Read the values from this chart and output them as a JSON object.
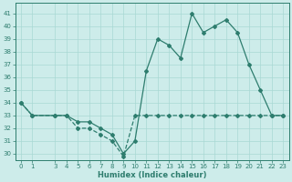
{
  "line1_x": [
    0,
    1,
    3,
    4,
    5,
    6,
    7,
    8,
    9,
    10,
    11,
    12,
    13,
    14,
    15,
    16,
    17,
    18,
    19,
    20,
    21,
    22,
    23
  ],
  "line1_y": [
    34,
    33,
    33,
    33,
    32.5,
    32.5,
    32,
    31.5,
    30,
    31,
    36.5,
    39,
    38.5,
    37.5,
    41,
    39.5,
    40,
    40.5,
    39.5,
    37,
    35,
    33,
    33
  ],
  "line2_x": [
    0,
    1,
    3,
    4,
    5,
    6,
    7,
    8,
    9,
    10,
    11,
    12,
    13,
    14,
    15,
    16,
    17,
    18,
    19,
    20,
    21,
    22,
    23
  ],
  "line2_y": [
    34,
    33,
    33,
    33,
    32,
    32,
    31.5,
    31,
    29.8,
    33,
    33,
    33,
    33,
    33,
    33,
    33,
    33,
    33,
    33,
    33,
    33,
    33,
    33
  ],
  "line_color": "#2e7d6e",
  "bg_color": "#cdecea",
  "grid_color": "#a8d8d4",
  "xlabel": "Humidex (Indice chaleur)",
  "ylim": [
    29.5,
    41.8
  ],
  "xlim": [
    -0.5,
    23.5
  ],
  "yticks": [
    30,
    31,
    32,
    33,
    34,
    35,
    36,
    37,
    38,
    39,
    40,
    41
  ],
  "xticks": [
    0,
    1,
    3,
    4,
    5,
    6,
    7,
    8,
    9,
    10,
    11,
    12,
    13,
    14,
    15,
    16,
    17,
    18,
    19,
    20,
    21,
    22,
    23
  ],
  "xlabel_fontsize": 6.0,
  "tick_fontsize": 5.0,
  "marker_size": 2.0,
  "linewidth": 0.9
}
